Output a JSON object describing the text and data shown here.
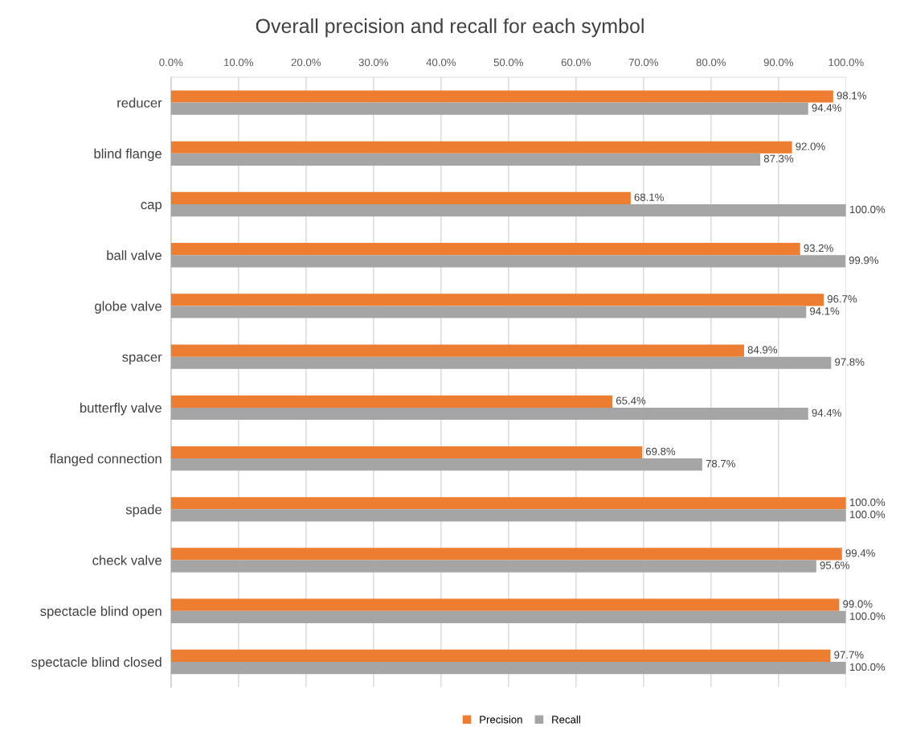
{
  "chart_data": {
    "type": "bar",
    "orientation": "horizontal",
    "title": "Overall precision and recall for each symbol",
    "categories": [
      "reducer",
      "blind flange",
      "cap",
      "ball valve",
      "globe valve",
      "spacer",
      "butterfly valve",
      "flanged connection",
      "spade",
      "check valve",
      "spectacle blind open",
      "spectacle blind closed"
    ],
    "series": [
      {
        "name": "Precision",
        "color": "#ed7d31",
        "values": [
          98.1,
          92.0,
          68.1,
          93.2,
          96.7,
          84.9,
          65.4,
          69.8,
          100.0,
          99.4,
          99.0,
          97.7
        ],
        "value_labels": [
          "98.1%",
          "92.0%",
          "68.1%",
          "93.2%",
          "96.7%",
          "84.9%",
          "65.4%",
          "69.8%",
          "100.0%",
          "99.4%",
          "99.0%",
          "97.7%"
        ]
      },
      {
        "name": "Recall",
        "color": "#a5a5a5",
        "values": [
          94.4,
          87.3,
          100.0,
          99.9,
          94.1,
          97.8,
          94.4,
          78.7,
          100.0,
          95.6,
          100.0,
          100.0
        ],
        "value_labels": [
          "94.4%",
          "87.3%",
          "100.0%",
          "99.9%",
          "94.1%",
          "97.8%",
          "94.4%",
          "78.7%",
          "100.0%",
          "95.6%",
          "100.0%",
          "100.0%"
        ]
      }
    ],
    "xlim": [
      0,
      100
    ],
    "xticks": [
      {
        "value": 0,
        "label": "0.0%"
      },
      {
        "value": 10,
        "label": "10.0%"
      },
      {
        "value": 20,
        "label": "20.0%"
      },
      {
        "value": 30,
        "label": "30.0%"
      },
      {
        "value": 40,
        "label": "40.0%"
      },
      {
        "value": 50,
        "label": "50.0%"
      },
      {
        "value": 60,
        "label": "60.0%"
      },
      {
        "value": 70,
        "label": "70.0%"
      },
      {
        "value": 80,
        "label": "80.0%"
      },
      {
        "value": 90,
        "label": "90.0%"
      },
      {
        "value": 100,
        "label": "100.0%"
      }
    ],
    "grid": "x",
    "legend": "bottom"
  }
}
